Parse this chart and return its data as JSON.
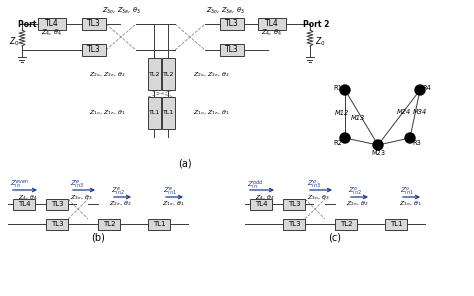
{
  "bg_color": "#ffffff",
  "fig_size": [
    4.74,
    2.96
  ],
  "dpi": 100,
  "box_color": "#d8d8d8",
  "line_color": "#3a3a3a",
  "text_color": "#000000",
  "blue_color": "#1a3a9a",
  "cross_color": "#888888",
  "label_a": "(a)",
  "label_b": "(b)",
  "label_c": "(c)"
}
